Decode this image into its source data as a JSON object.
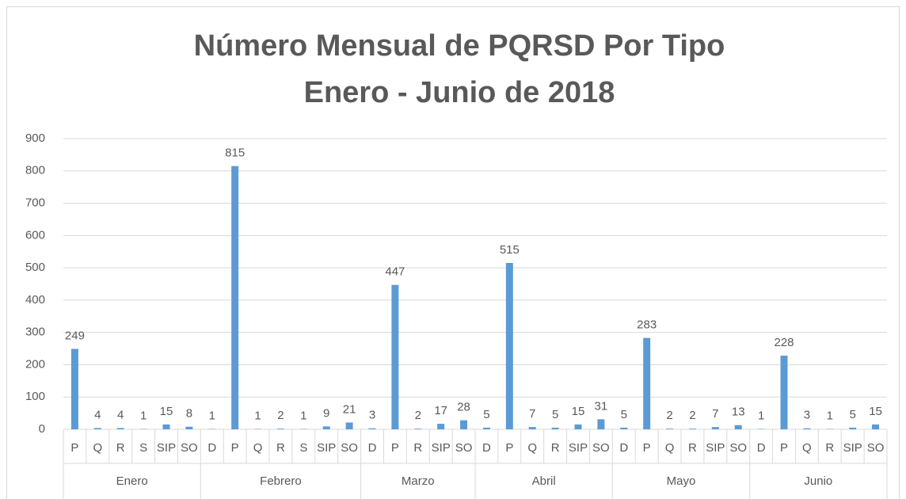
{
  "chart_data": {
    "type": "bar",
    "title": "Número Mensual de PQRSD Por Tipo",
    "subtitle": "Enero - Junio de 2018",
    "color": "#5b9bd5",
    "ylim": [
      0,
      900
    ],
    "yticks": [
      0,
      100,
      200,
      300,
      400,
      500,
      600,
      700,
      800,
      900
    ],
    "grid": true,
    "groups": [
      {
        "name": "Enero",
        "categories": [
          "P",
          "Q",
          "R",
          "S",
          "SIP",
          "SO"
        ],
        "values": [
          249,
          4,
          4,
          1,
          15,
          8
        ]
      },
      {
        "name": "Febrero",
        "categories": [
          "D",
          "P",
          "Q",
          "R",
          "S",
          "SIP",
          "SO"
        ],
        "values": [
          1,
          815,
          1,
          2,
          1,
          9,
          21
        ]
      },
      {
        "name": "Marzo",
        "categories": [
          "D",
          "P",
          "R",
          "SIP",
          "SO"
        ],
        "values": [
          3,
          447,
          2,
          17,
          28
        ]
      },
      {
        "name": "Abril",
        "categories": [
          "D",
          "P",
          "Q",
          "R",
          "SIP",
          "SO"
        ],
        "values": [
          5,
          515,
          7,
          5,
          15,
          31
        ]
      },
      {
        "name": "Mayo",
        "categories": [
          "D",
          "P",
          "Q",
          "R",
          "SIP",
          "SO"
        ],
        "values": [
          5,
          283,
          2,
          2,
          7,
          13
        ]
      },
      {
        "name": "Junio",
        "categories": [
          "D",
          "P",
          "Q",
          "R",
          "SIP",
          "SO"
        ],
        "values": [
          1,
          228,
          3,
          1,
          5,
          15
        ]
      }
    ]
  }
}
